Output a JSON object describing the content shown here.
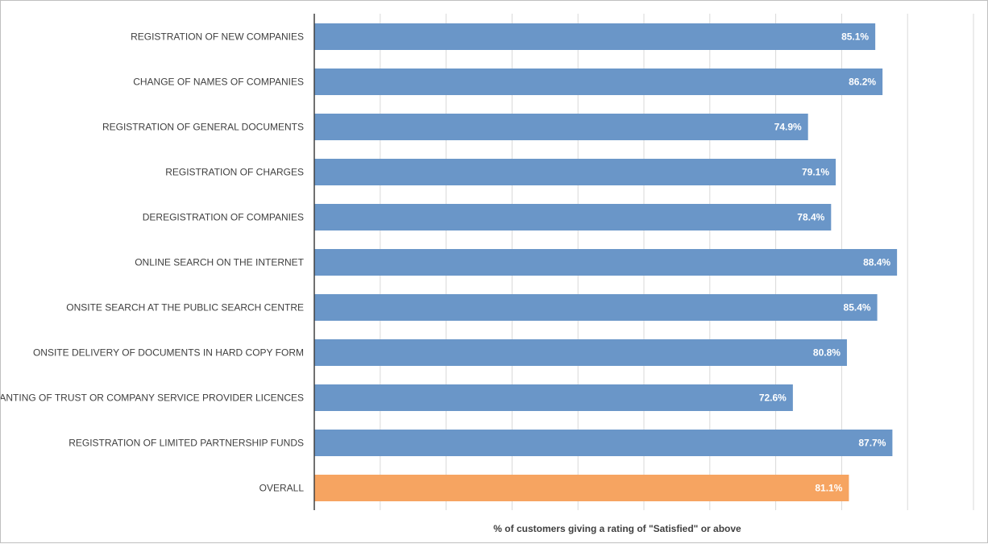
{
  "chart_data": {
    "type": "bar",
    "orientation": "horizontal",
    "categories": [
      "REGISTRATION OF NEW COMPANIES",
      "CHANGE OF NAMES OF COMPANIES",
      "REGISTRATION OF GENERAL DOCUMENTS",
      "REGISTRATION OF CHARGES",
      "DEREGISTRATION OF COMPANIES",
      "ONLINE SEARCH ON THE INTERNET",
      "ONSITE SEARCH AT THE PUBLIC SEARCH CENTRE",
      "ONSITE DELIVERY OF DOCUMENTS IN HARD COPY FORM",
      "GRANTING OF TRUST OR COMPANY SERVICE PROVIDER LICENCES",
      "REGISTRATION OF LIMITED PARTNERSHIP FUNDS",
      "OVERALL"
    ],
    "values": [
      85.1,
      86.2,
      74.9,
      79.1,
      78.4,
      88.4,
      85.4,
      80.8,
      72.6,
      87.7,
      81.1
    ],
    "value_labels": [
      "85.1%",
      "86.2%",
      "74.9%",
      "79.1%",
      "78.4%",
      "88.4%",
      "85.4%",
      "80.8%",
      "72.6%",
      "87.7%",
      "81.1%"
    ],
    "colors": [
      "#6a96c8",
      "#6a96c8",
      "#6a96c8",
      "#6a96c8",
      "#6a96c8",
      "#6a96c8",
      "#6a96c8",
      "#6a96c8",
      "#6a96c8",
      "#6a96c8",
      "#f6a461"
    ],
    "title": "",
    "xlabel": "% of customers giving a rating of \"Satisfied\" or above",
    "ylabel": "",
    "xlim": [
      0,
      100
    ],
    "grid": true,
    "legend": "none"
  }
}
